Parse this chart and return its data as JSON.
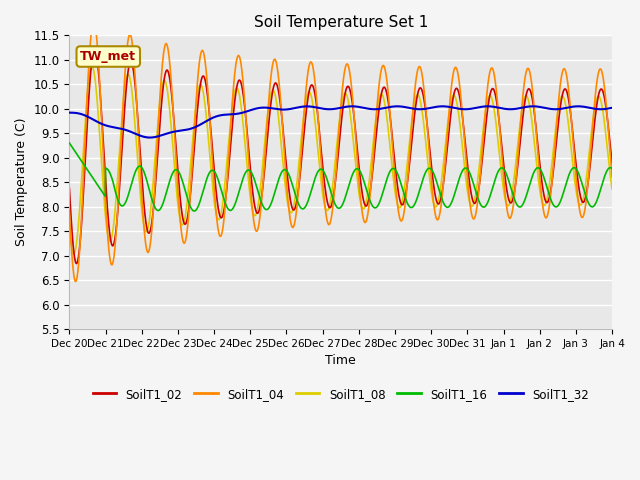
{
  "title": "Soil Temperature Set 1",
  "xlabel": "Time",
  "ylabel": "Soil Temperature (C)",
  "ylim": [
    5.5,
    11.5
  ],
  "yticks": [
    5.5,
    6.0,
    6.5,
    7.0,
    7.5,
    8.0,
    8.5,
    9.0,
    9.5,
    10.0,
    10.5,
    11.0,
    11.5
  ],
  "colors": {
    "SoilT1_02": "#cc0000",
    "SoilT1_04": "#ff8800",
    "SoilT1_08": "#ddcc00",
    "SoilT1_16": "#00bb00",
    "SoilT1_32": "#0000cc"
  },
  "tw_met_label": "TW_met",
  "tw_met_color": "#aa0000",
  "tw_met_bg": "#ffffcc",
  "tw_met_border": "#aa8800",
  "plot_bg": "#e8e8e8",
  "fig_bg": "#f5f5f5",
  "grid_color": "#ffffff",
  "linewidth": 1.2,
  "tick_labels": [
    "Dec 20",
    "Dec 21",
    "Dec 22",
    "Dec 23",
    "Dec 24",
    "Dec 25",
    "Dec 26",
    "Dec 27",
    "Dec 28",
    "Dec 29",
    "Dec 30",
    "Dec 31",
    "Jan 1",
    "Jan 2",
    "Jan 3",
    "Jan 4"
  ]
}
